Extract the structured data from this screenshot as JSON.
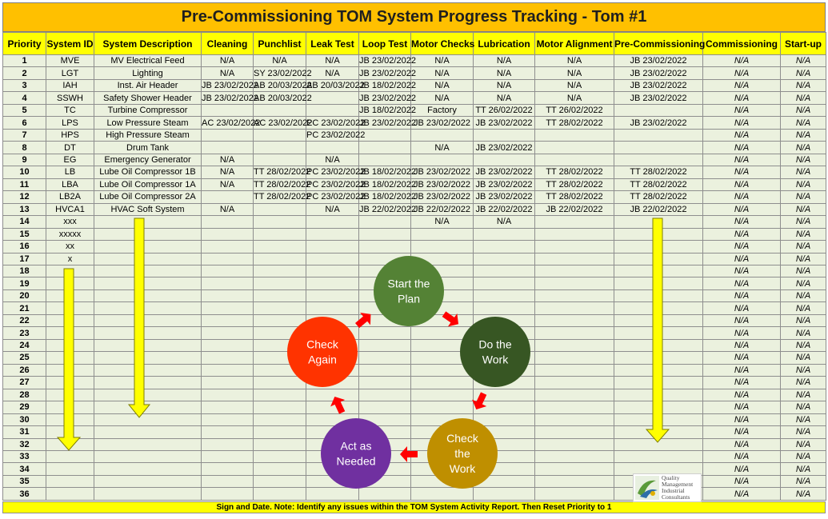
{
  "title": "Pre-Commissioning TOM System Progress Tracking - Tom #1",
  "columns": [
    "Priority",
    "System ID",
    "System Description",
    "Cleaning",
    "Punchlist",
    "Leak Test",
    "Loop Test",
    "Motor Checks",
    "Lubrication",
    "Motor Alignment",
    "Pre-Commissioning",
    "Commissioning",
    "Start-up"
  ],
  "rows": [
    {
      "p": "1",
      "id": "MVE",
      "desc": "MV Electrical Feed",
      "cells": [
        "N/A",
        "N/A",
        "N/A",
        "JB 23/02/2022",
        "N/A",
        "N/A",
        "N/A",
        "JB 23/02/2022",
        "N/A",
        "N/A"
      ]
    },
    {
      "p": "2",
      "id": "LGT",
      "desc": "Lighting",
      "cells": [
        "N/A",
        "SY 23/02/2022",
        "N/A",
        "JB 23/02/2022",
        "N/A",
        "N/A",
        "N/A",
        "JB 23/02/2022",
        "N/A",
        "N/A"
      ]
    },
    {
      "p": "3",
      "id": "IAH",
      "desc": "Inst. Air Header",
      "cells": [
        "JB 23/02/2022",
        "AB 20/03/2022",
        "AB 20/03/2022",
        "JB 18/02/2022",
        "N/A",
        "N/A",
        "N/A",
        "JB 23/02/2022",
        "N/A",
        "N/A"
      ]
    },
    {
      "p": "4",
      "id": "SSWH",
      "desc": "Safety Shower Header",
      "cells": [
        "JB 23/02/2022",
        "AB 20/03/2022",
        "",
        "JB 23/02/2022",
        "N/A",
        "N/A",
        "N/A",
        "JB 23/02/2022",
        "N/A",
        "N/A"
      ]
    },
    {
      "p": "5",
      "id": "TC",
      "desc": "Turbine Compressor",
      "cells": [
        "",
        "",
        "",
        "JB 18/02/2022",
        "Factory",
        "TT 26/02/2022",
        "TT 26/02/2022",
        "",
        "N/A",
        "N/A"
      ]
    },
    {
      "p": "6",
      "id": "LPS",
      "desc": "Low Pressure Steam",
      "cells": [
        "AC 23/02/2022",
        "AC 23/02/2022",
        "PC 23/02/2022",
        "JB 23/02/2022",
        "JB 23/02/2022",
        "JB 23/02/2022",
        "TT 28/02/2022",
        "JB 23/02/2022",
        "N/A",
        "N/A"
      ]
    },
    {
      "p": "7",
      "id": "HPS",
      "desc": "High Pressure Steam",
      "cells": [
        "",
        "",
        "PC 23/02/2022",
        "",
        "",
        "",
        "",
        "",
        "N/A",
        "N/A"
      ]
    },
    {
      "p": "8",
      "id": "DT",
      "desc": "Drum Tank",
      "cells": [
        "",
        "",
        "",
        "",
        "N/A",
        "JB 23/02/2022",
        "",
        "",
        "N/A",
        "N/A"
      ]
    },
    {
      "p": "9",
      "id": "EG",
      "desc": "Emergency Generator",
      "cells": [
        "N/A",
        "",
        "N/A",
        "",
        "",
        "",
        "",
        "",
        "N/A",
        "N/A"
      ]
    },
    {
      "p": "10",
      "id": "LB",
      "desc": "Lube Oil Compressor 1B",
      "cells": [
        "N/A",
        "TT 28/02/2022",
        "PC 23/02/2022",
        "JB 18/02/2022",
        "JB 23/02/2022",
        "JB 23/02/2022",
        "TT 28/02/2022",
        "TT 28/02/2022",
        "N/A",
        "N/A"
      ]
    },
    {
      "p": "11",
      "id": "LBA",
      "desc": "Lube Oil Compressor 1A",
      "cells": [
        "N/A",
        "TT 28/02/2022",
        "PC 23/02/2022",
        "JB 18/02/2022",
        "JB 23/02/2022",
        "JB 23/02/2022",
        "TT 28/02/2022",
        "TT 28/02/2022",
        "N/A",
        "N/A"
      ]
    },
    {
      "p": "12",
      "id": "LB2A",
      "desc": "Lube Oil Compressor 2A",
      "cells": [
        "",
        "TT 28/02/2022",
        "PC 23/02/2022",
        "JB 18/02/2022",
        "JB 23/02/2022",
        "JB 23/02/2022",
        "TT 28/02/2022",
        "TT 28/02/2022",
        "N/A",
        "N/A"
      ]
    },
    {
      "p": "13",
      "id": "HVCA1",
      "desc": "HVAC Soft System",
      "cells": [
        "N/A",
        "",
        "N/A",
        "JB 22/02/2022",
        "JB 22/02/2022",
        "JB 22/02/2022",
        "JB 22/02/2022",
        "JB 22/02/2022",
        "N/A",
        "N/A"
      ]
    },
    {
      "p": "14",
      "id": "xxx",
      "desc": "",
      "cells": [
        "",
        "",
        "",
        "",
        "N/A",
        "N/A",
        "",
        "",
        "N/A",
        "N/A"
      ]
    },
    {
      "p": "15",
      "id": "xxxxx",
      "desc": "",
      "cells": [
        "",
        "",
        "",
        "",
        "",
        "",
        "",
        "",
        "N/A",
        "N/A"
      ]
    },
    {
      "p": "16",
      "id": "xx",
      "desc": "",
      "cells": [
        "",
        "",
        "",
        "",
        "",
        "",
        "",
        "",
        "N/A",
        "N/A"
      ]
    },
    {
      "p": "17",
      "id": "x",
      "desc": "",
      "cells": [
        "",
        "",
        "",
        "",
        "",
        "",
        "",
        "",
        "N/A",
        "N/A"
      ]
    }
  ],
  "extra_priorities": [
    "18",
    "19",
    "20",
    "21",
    "22",
    "23",
    "24",
    "25",
    "26",
    "27",
    "28",
    "29",
    "30",
    "31",
    "32",
    "33",
    "34",
    "35",
    "36"
  ],
  "na_text": "N/A",
  "gray_cells": [
    [
      0,
      0
    ],
    [
      0,
      1
    ],
    [
      0,
      2
    ],
    [
      0,
      4
    ],
    [
      0,
      5
    ],
    [
      0,
      6
    ],
    [
      1,
      0
    ],
    [
      1,
      2
    ],
    [
      1,
      4
    ],
    [
      1,
      5
    ],
    [
      1,
      6
    ],
    [
      2,
      4
    ],
    [
      2,
      5
    ],
    [
      2,
      6
    ],
    [
      3,
      4
    ],
    [
      3,
      5
    ],
    [
      3,
      6
    ],
    [
      7,
      4
    ],
    [
      8,
      0
    ],
    [
      8,
      2
    ],
    [
      9,
      0
    ],
    [
      10,
      0
    ],
    [
      12,
      0
    ],
    [
      12,
      2
    ],
    [
      13,
      4
    ],
    [
      13,
      5
    ]
  ],
  "cycle": {
    "steps": [
      {
        "label": [
          "Start the",
          "Plan"
        ],
        "color": "#548235"
      },
      {
        "label": [
          "Do the",
          "Work"
        ],
        "color": "#375623"
      },
      {
        "label": [
          "Check",
          "the",
          "Work"
        ],
        "color": "#bf8f00"
      },
      {
        "label": [
          "Act as",
          "Needed"
        ],
        "color": "#7030a0"
      },
      {
        "label": [
          "Check",
          "Again"
        ],
        "color": "#ff3300"
      }
    ],
    "arrow_color": "#ff0000"
  },
  "arrow_color": "#ffff00",
  "footer": "Sign and Date. Note: Identify any issues within the TOM System Activity Report. Then Reset Priority to 1",
  "logo": {
    "lines": [
      "Quality",
      "Management",
      "Industrial",
      "Consultants"
    ]
  }
}
